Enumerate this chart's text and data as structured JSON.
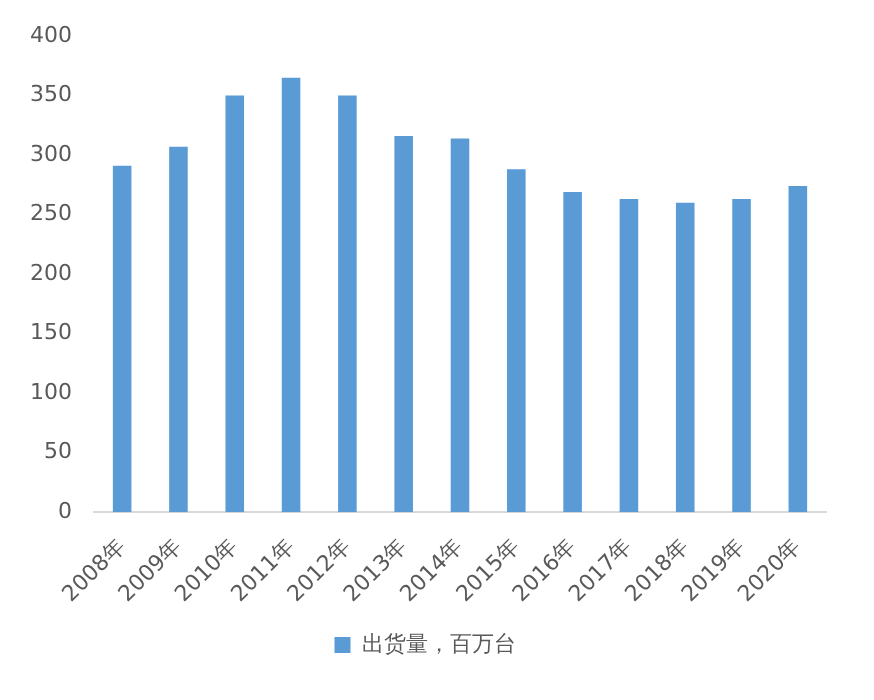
{
  "chart_data": {
    "type": "bar",
    "categories": [
      "2008年",
      "2009年",
      "2010年",
      "2011年",
      "2012年",
      "2013年",
      "2014年",
      "2015年",
      "2016年",
      "2017年",
      "2018年",
      "2019年",
      "2020年"
    ],
    "series": [
      {
        "name": "出货量，百万台",
        "color": "#5b9bd5",
        "values": [
          291,
          307,
          350,
          365,
          350,
          316,
          314,
          288,
          269,
          263,
          260,
          263,
          274
        ]
      }
    ],
    "ylim": [
      0,
      400
    ],
    "yticks": [
      0,
      50,
      100,
      150,
      200,
      250,
      300,
      350,
      400
    ],
    "grid": false,
    "legend": "bottom"
  }
}
